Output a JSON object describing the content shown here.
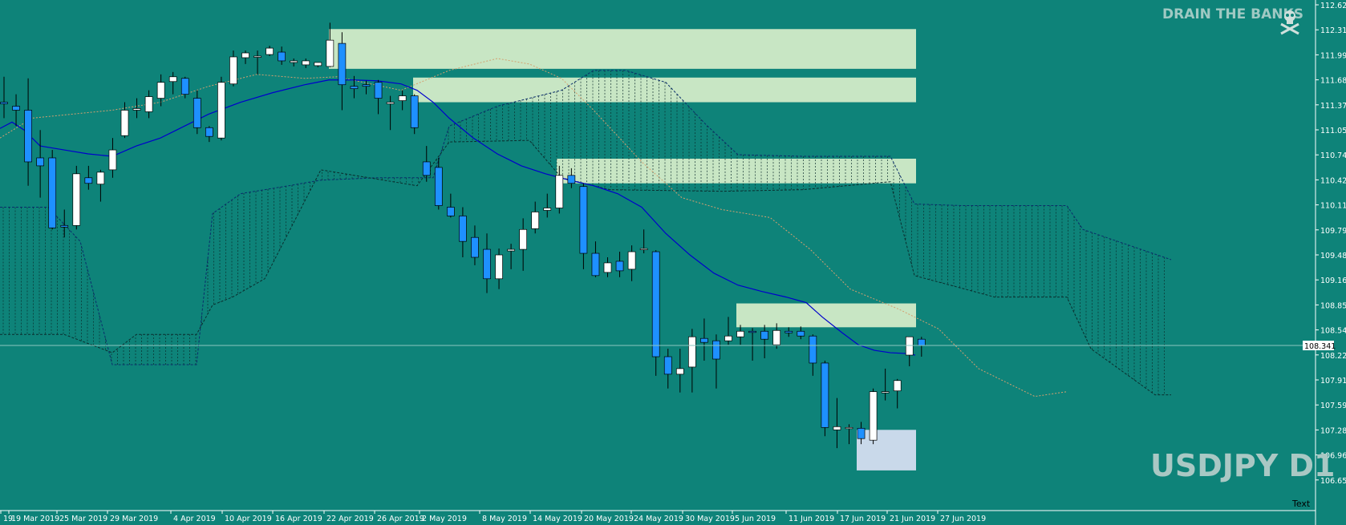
{
  "branding": {
    "text": "DRAIN THE BANKS",
    "icon": "skull-crossbones-icon"
  },
  "symbol_label": "USDJPY D1",
  "price_tag": "108.341",
  "corner_text": "Text",
  "colors": {
    "background": "#0e8379",
    "bull_candle": "#ffffff",
    "bear_candle": "#1e90ff",
    "ma_line": "#0000cc",
    "zone": "#c8e6c4",
    "buy_zone": "#c9d9ea",
    "cloud": "#0b2a2a",
    "lagging": "#d4a070"
  },
  "chart_data": {
    "type": "candlestick",
    "symbol": "USDJPY",
    "timeframe": "D1",
    "y_ticks": [
      "112.625",
      "112.310",
      "111.995",
      "111.680",
      "111.370",
      "111.055",
      "110.740",
      "110.425",
      "110.110",
      "109.795",
      "109.480",
      "109.165",
      "108.850",
      "108.540",
      "108.225",
      "107.910",
      "107.595",
      "107.280",
      "106.965",
      "106.650"
    ],
    "x_labels": [
      "19",
      "19 Mar 2019",
      "25 Mar 2019",
      "29 Mar 2019",
      "4 Apr 2019",
      "10 Apr 2019",
      "16 Apr 2019",
      "22 Apr 2019",
      "26 Apr 2019",
      "2 May 2019",
      "8 May 2019",
      "14 May 2019",
      "20 May 2019",
      "24 May 2019",
      "30 May 2019",
      "5 Jun 2019",
      "11 Jun 2019",
      "17 Jun 2019",
      "21 Jun 2019",
      "27 Jun 2019"
    ],
    "ylim": [
      106.65,
      112.625
    ],
    "current_price": 108.341,
    "candles": [
      {
        "o": 111.4,
        "h": 111.72,
        "l": 111.2,
        "c": 111.38
      },
      {
        "o": 111.35,
        "h": 111.5,
        "l": 111.1,
        "c": 111.3
      },
      {
        "o": 111.3,
        "h": 111.7,
        "l": 110.35,
        "c": 110.65
      },
      {
        "o": 110.7,
        "h": 111.05,
        "l": 110.2,
        "c": 110.6
      },
      {
        "o": 110.7,
        "h": 110.8,
        "l": 109.8,
        "c": 109.82
      },
      {
        "o": 109.85,
        "h": 110.05,
        "l": 109.7,
        "c": 109.83
      },
      {
        "o": 109.85,
        "h": 110.6,
        "l": 109.8,
        "c": 110.5
      },
      {
        "o": 110.45,
        "h": 110.6,
        "l": 110.3,
        "c": 110.38
      },
      {
        "o": 110.37,
        "h": 110.55,
        "l": 110.15,
        "c": 110.52
      },
      {
        "o": 110.55,
        "h": 110.95,
        "l": 110.45,
        "c": 110.8
      },
      {
        "o": 110.98,
        "h": 111.4,
        "l": 110.95,
        "c": 111.3
      },
      {
        "o": 111.3,
        "h": 111.45,
        "l": 111.2,
        "c": 111.32
      },
      {
        "o": 111.28,
        "h": 111.55,
        "l": 111.2,
        "c": 111.47
      },
      {
        "o": 111.45,
        "h": 111.75,
        "l": 111.35,
        "c": 111.65
      },
      {
        "o": 111.66,
        "h": 111.78,
        "l": 111.5,
        "c": 111.72
      },
      {
        "o": 111.7,
        "h": 111.72,
        "l": 111.45,
        "c": 111.5
      },
      {
        "o": 111.45,
        "h": 111.55,
        "l": 111.0,
        "c": 111.08
      },
      {
        "o": 111.08,
        "h": 111.1,
        "l": 110.9,
        "c": 110.97
      },
      {
        "o": 110.95,
        "h": 111.72,
        "l": 110.92,
        "c": 111.65
      },
      {
        "o": 111.63,
        "h": 112.05,
        "l": 111.6,
        "c": 111.97
      },
      {
        "o": 111.96,
        "h": 112.05,
        "l": 111.88,
        "c": 112.02
      },
      {
        "o": 111.98,
        "h": 112.05,
        "l": 111.75,
        "c": 111.98
      },
      {
        "o": 112.0,
        "h": 112.11,
        "l": 111.98,
        "c": 112.08
      },
      {
        "o": 112.03,
        "h": 112.1,
        "l": 111.87,
        "c": 111.92
      },
      {
        "o": 111.9,
        "h": 111.95,
        "l": 111.85,
        "c": 111.92
      },
      {
        "o": 111.87,
        "h": 111.95,
        "l": 111.83,
        "c": 111.92
      },
      {
        "o": 111.86,
        "h": 111.9,
        "l": 111.84,
        "c": 111.9
      },
      {
        "o": 111.85,
        "h": 112.4,
        "l": 111.84,
        "c": 112.18
      },
      {
        "o": 112.14,
        "h": 112.28,
        "l": 111.3,
        "c": 111.62
      },
      {
        "o": 111.6,
        "h": 111.73,
        "l": 111.45,
        "c": 111.57
      },
      {
        "o": 111.62,
        "h": 111.67,
        "l": 111.5,
        "c": 111.6
      },
      {
        "o": 111.65,
        "h": 111.68,
        "l": 111.25,
        "c": 111.45
      },
      {
        "o": 111.38,
        "h": 111.48,
        "l": 111.05,
        "c": 111.4
      },
      {
        "o": 111.42,
        "h": 111.55,
        "l": 111.3,
        "c": 111.48
      },
      {
        "o": 111.48,
        "h": 111.5,
        "l": 111.0,
        "c": 111.08
      },
      {
        "o": 110.65,
        "h": 110.85,
        "l": 110.4,
        "c": 110.48
      },
      {
        "o": 110.58,
        "h": 110.7,
        "l": 110.05,
        "c": 110.1
      },
      {
        "o": 110.08,
        "h": 110.25,
        "l": 109.95,
        "c": 109.97
      },
      {
        "o": 109.97,
        "h": 110.08,
        "l": 109.45,
        "c": 109.65
      },
      {
        "o": 109.7,
        "h": 109.85,
        "l": 109.35,
        "c": 109.45
      },
      {
        "o": 109.55,
        "h": 109.75,
        "l": 109.0,
        "c": 109.18
      },
      {
        "o": 109.18,
        "h": 109.56,
        "l": 109.05,
        "c": 109.48
      },
      {
        "o": 109.53,
        "h": 109.62,
        "l": 109.3,
        "c": 109.55
      },
      {
        "o": 109.55,
        "h": 109.94,
        "l": 109.28,
        "c": 109.8
      },
      {
        "o": 109.81,
        "h": 110.15,
        "l": 109.75,
        "c": 110.02
      },
      {
        "o": 110.04,
        "h": 110.25,
        "l": 109.95,
        "c": 110.07
      },
      {
        "o": 110.07,
        "h": 110.6,
        "l": 110.0,
        "c": 110.48
      },
      {
        "o": 110.48,
        "h": 110.57,
        "l": 110.32,
        "c": 110.38
      },
      {
        "o": 110.34,
        "h": 110.38,
        "l": 109.3,
        "c": 109.5
      },
      {
        "o": 109.5,
        "h": 109.65,
        "l": 109.2,
        "c": 109.22
      },
      {
        "o": 109.26,
        "h": 109.45,
        "l": 109.2,
        "c": 109.38
      },
      {
        "o": 109.4,
        "h": 109.52,
        "l": 109.2,
        "c": 109.28
      },
      {
        "o": 109.3,
        "h": 109.6,
        "l": 109.15,
        "c": 109.52
      },
      {
        "o": 109.55,
        "h": 109.8,
        "l": 109.5,
        "c": 109.56
      },
      {
        "o": 109.52,
        "h": 109.54,
        "l": 107.96,
        "c": 108.2
      },
      {
        "o": 108.2,
        "h": 108.3,
        "l": 107.8,
        "c": 107.98
      },
      {
        "o": 107.98,
        "h": 108.3,
        "l": 107.75,
        "c": 108.05
      },
      {
        "o": 108.07,
        "h": 108.55,
        "l": 107.75,
        "c": 108.45
      },
      {
        "o": 108.43,
        "h": 108.68,
        "l": 108.15,
        "c": 108.38
      },
      {
        "o": 108.4,
        "h": 108.48,
        "l": 107.8,
        "c": 108.17
      },
      {
        "o": 108.4,
        "h": 108.7,
        "l": 108.35,
        "c": 108.46
      },
      {
        "o": 108.45,
        "h": 108.6,
        "l": 108.35,
        "c": 108.52
      },
      {
        "o": 108.52,
        "h": 108.56,
        "l": 108.15,
        "c": 108.51
      },
      {
        "o": 108.52,
        "h": 108.6,
        "l": 108.18,
        "c": 108.42
      },
      {
        "o": 108.35,
        "h": 108.62,
        "l": 108.3,
        "c": 108.53
      },
      {
        "o": 108.52,
        "h": 108.57,
        "l": 108.45,
        "c": 108.5
      },
      {
        "o": 108.52,
        "h": 108.58,
        "l": 108.42,
        "c": 108.46
      },
      {
        "o": 108.46,
        "h": 108.48,
        "l": 107.96,
        "c": 108.12
      },
      {
        "o": 108.12,
        "h": 108.15,
        "l": 107.2,
        "c": 107.31
      },
      {
        "o": 107.28,
        "h": 107.68,
        "l": 107.05,
        "c": 107.32
      },
      {
        "o": 107.3,
        "h": 107.35,
        "l": 107.1,
        "c": 107.31
      },
      {
        "o": 107.3,
        "h": 107.38,
        "l": 107.1,
        "c": 107.17
      },
      {
        "o": 107.15,
        "h": 107.8,
        "l": 107.1,
        "c": 107.76
      },
      {
        "o": 107.76,
        "h": 108.05,
        "l": 107.65,
        "c": 107.76
      },
      {
        "o": 107.77,
        "h": 107.92,
        "l": 107.55,
        "c": 107.9
      },
      {
        "o": 108.22,
        "h": 108.45,
        "l": 108.08,
        "c": 108.45
      },
      {
        "o": 108.42,
        "h": 108.45,
        "l": 108.2,
        "c": 108.34
      }
    ],
    "ma_points": [
      [
        0,
        111.07
      ],
      [
        15,
        111.15
      ],
      [
        30,
        111.05
      ],
      [
        50,
        110.85
      ],
      [
        80,
        110.8
      ],
      [
        110,
        110.75
      ],
      [
        140,
        110.72
      ],
      [
        170,
        110.85
      ],
      [
        200,
        110.95
      ],
      [
        230,
        111.1
      ],
      [
        260,
        111.25
      ],
      [
        300,
        111.4
      ],
      [
        340,
        111.52
      ],
      [
        380,
        111.62
      ],
      [
        410,
        111.68
      ],
      [
        440,
        111.68
      ],
      [
        470,
        111.67
      ],
      [
        500,
        111.63
      ],
      [
        520,
        111.55
      ],
      [
        540,
        111.4
      ],
      [
        560,
        111.2
      ],
      [
        590,
        110.95
      ],
      [
        620,
        110.75
      ],
      [
        650,
        110.6
      ],
      [
        680,
        110.5
      ],
      [
        710,
        110.42
      ],
      [
        740,
        110.35
      ],
      [
        770,
        110.25
      ],
      [
        800,
        110.08
      ],
      [
        830,
        109.75
      ],
      [
        860,
        109.48
      ],
      [
        890,
        109.25
      ],
      [
        920,
        109.1
      ],
      [
        950,
        109.02
      ],
      [
        980,
        108.95
      ],
      [
        1005,
        108.88
      ],
      [
        1025,
        108.7
      ],
      [
        1050,
        108.5
      ],
      [
        1070,
        108.35
      ],
      [
        1090,
        108.28
      ],
      [
        1110,
        108.25
      ],
      [
        1130,
        108.24
      ],
      [
        1141,
        108.22
      ]
    ],
    "resistance_zones": [
      {
        "x1": 410,
        "x2": 1142,
        "top": 112.32,
        "bottom": 111.82
      },
      {
        "x1": 515,
        "x2": 1142,
        "top": 111.71,
        "bottom": 111.4
      },
      {
        "x1": 694,
        "x2": 1142,
        "top": 110.69,
        "bottom": 110.38
      },
      {
        "x1": 918,
        "x2": 1142,
        "top": 108.87,
        "bottom": 108.57
      }
    ],
    "support_zone": {
      "x1": 1068,
      "x2": 1142,
      "top": 107.28,
      "bottom": 106.77
    }
  }
}
